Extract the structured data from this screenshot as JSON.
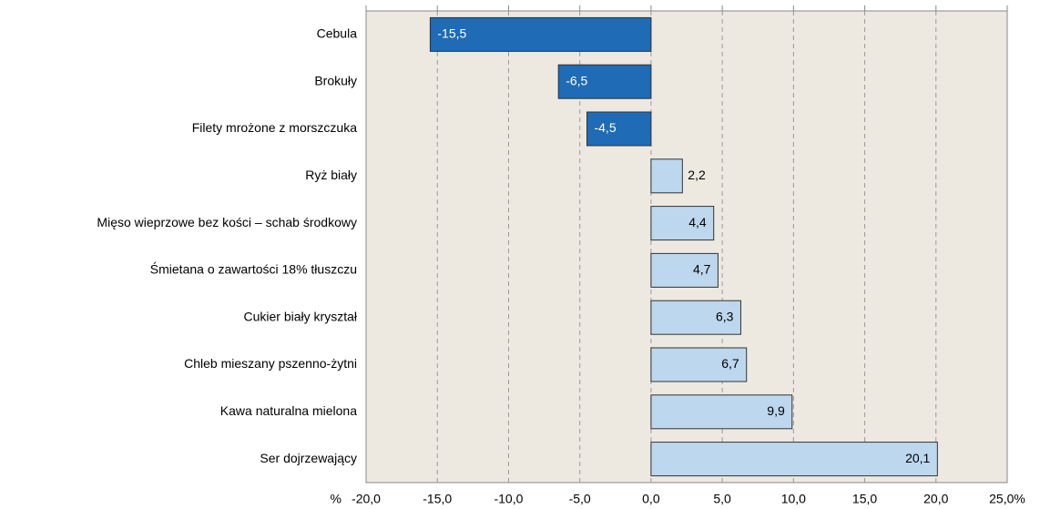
{
  "chart_data": {
    "type": "barh",
    "categories": [
      "Cebula",
      "Brokuły",
      "Filety mrożone z morszczuka",
      "Ryż biały",
      "Mięso wieprzowe bez kości – schab środkowy",
      "Śmietana o zawartości 18% tłuszczu",
      "Cukier biały kryształ",
      "Chleb mieszany pszenno-żytni",
      "Kawa naturalna mielona",
      "Ser dojrzewający"
    ],
    "values": [
      -15.5,
      -6.5,
      -4.5,
      2.2,
      4.4,
      4.7,
      6.3,
      6.7,
      9.9,
      20.1
    ],
    "value_labels": [
      "-15,5",
      "-6,5",
      "-4,5",
      "2,2",
      "4,4",
      "4,7",
      "6,3",
      "6,7",
      "9,9",
      "20,1"
    ],
    "color": "#bdd7ee",
    "negative_color": "#1f6bb5",
    "xlim": [
      -20,
      25
    ],
    "xticks": [
      {
        "value": -20,
        "label": "-20,0"
      },
      {
        "value": -15,
        "label": "-15,0"
      },
      {
        "value": -10,
        "label": "-10,0"
      },
      {
        "value": -5,
        "label": "-5,0"
      },
      {
        "value": 0,
        "label": "0,0"
      },
      {
        "value": 5,
        "label": "5,0"
      },
      {
        "value": 10,
        "label": "10,0"
      },
      {
        "value": 15,
        "label": "15,0"
      },
      {
        "value": 20,
        "label": "20,0"
      },
      {
        "value": 25,
        "label": "25,0%"
      }
    ],
    "unit": "%",
    "grid": true
  }
}
